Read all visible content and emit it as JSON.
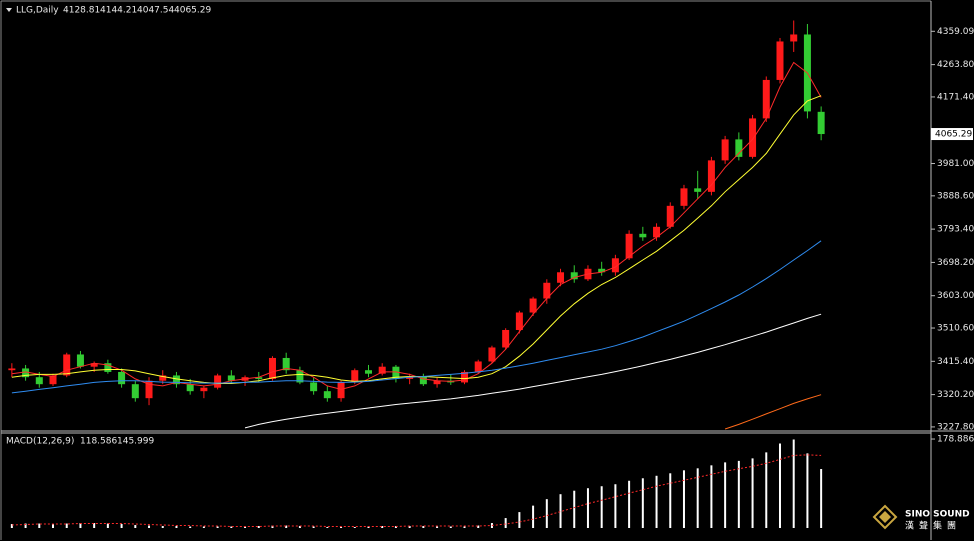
{
  "chart_data": [
    {
      "type": "candlestick",
      "title": "LLG,Daily",
      "categories": [
        null,
        null,
        null,
        null,
        null,
        null,
        null,
        null,
        null,
        null,
        null,
        null,
        null,
        null,
        null,
        null,
        null,
        null,
        null,
        null,
        null,
        null,
        null,
        null,
        null,
        null,
        null,
        null,
        null,
        null,
        null,
        null,
        null,
        null,
        null,
        null,
        null,
        null,
        null,
        null,
        null,
        null,
        null,
        null,
        null,
        null,
        null,
        null,
        null,
        null,
        null,
        null,
        null,
        null,
        null,
        null,
        null,
        null,
        null,
        null
      ],
      "open": [
        3390,
        3395,
        3370,
        3350,
        3375,
        3435,
        3400,
        3410,
        3385,
        3350,
        3310,
        3360,
        3375,
        3350,
        3330,
        3340,
        3375,
        3360,
        3370,
        3365,
        3425,
        3390,
        3355,
        3330,
        3310,
        3355,
        3390,
        3380,
        3400,
        3365,
        3372,
        3350,
        3360,
        3355,
        3385,
        3415,
        3455,
        3505,
        3555,
        3595,
        3640,
        3670,
        3650,
        3680,
        3670,
        3710,
        3780,
        3770,
        3800,
        3860,
        3910,
        3900,
        3990,
        4050,
        4000,
        4110,
        4220,
        4330,
        4350,
        4128.81
      ],
      "high": [
        3410,
        3405,
        3385,
        3380,
        3440,
        3445,
        3415,
        3420,
        3395,
        3360,
        3370,
        3390,
        3385,
        3365,
        3345,
        3380,
        3390,
        3375,
        3385,
        3430,
        3440,
        3400,
        3370,
        3345,
        3360,
        3395,
        3405,
        3410,
        3405,
        3380,
        3380,
        3368,
        3378,
        3390,
        3420,
        3460,
        3510,
        3560,
        3600,
        3650,
        3680,
        3690,
        3690,
        3700,
        3720,
        3790,
        3800,
        3810,
        3870,
        3920,
        3960,
        4000,
        4060,
        4070,
        4120,
        4230,
        4340,
        4390,
        4380,
        4144.21
      ],
      "low": [
        3370,
        3360,
        3340,
        3345,
        3370,
        3395,
        3385,
        3380,
        3340,
        3300,
        3290,
        3350,
        3340,
        3320,
        3310,
        3335,
        3355,
        3345,
        3355,
        3360,
        3380,
        3350,
        3320,
        3300,
        3300,
        3350,
        3370,
        3375,
        3355,
        3350,
        3345,
        3340,
        3348,
        3350,
        3380,
        3410,
        3450,
        3495,
        3545,
        3580,
        3630,
        3640,
        3645,
        3660,
        3660,
        3705,
        3760,
        3760,
        3795,
        3850,
        3880,
        3890,
        3980,
        3990,
        3995,
        4100,
        4210,
        4300,
        4110,
        4047.54
      ],
      "close": [
        3395,
        3370,
        3350,
        3375,
        3435,
        3400,
        3410,
        3385,
        3350,
        3310,
        3360,
        3375,
        3350,
        3330,
        3340,
        3375,
        3360,
        3370,
        3365,
        3425,
        3390,
        3355,
        3330,
        3310,
        3355,
        3390,
        3380,
        3400,
        3365,
        3372,
        3350,
        3360,
        3355,
        3385,
        3415,
        3455,
        3505,
        3555,
        3595,
        3640,
        3670,
        3650,
        3680,
        3670,
        3710,
        3780,
        3770,
        3800,
        3860,
        3910,
        3900,
        3990,
        4050,
        4000,
        4110,
        4220,
        4330,
        4350,
        4130,
        4065.29
      ],
      "up_color": "#ff1a1a",
      "down_color": "#33cc33",
      "lines": [
        {
          "color": "#ff2a2a",
          "values": [
            3380,
            3385,
            3378,
            3372,
            3390,
            3400,
            3410,
            3405,
            3390,
            3365,
            3350,
            3345,
            3355,
            3350,
            3345,
            3350,
            3360,
            3365,
            3370,
            3385,
            3395,
            3390,
            3370,
            3345,
            3335,
            3345,
            3365,
            3385,
            3385,
            3378,
            3365,
            3360,
            3358,
            3362,
            3380,
            3410,
            3450,
            3500,
            3550,
            3595,
            3635,
            3655,
            3665,
            3670,
            3685,
            3715,
            3745,
            3770,
            3800,
            3840,
            3880,
            3920,
            3970,
            4010,
            4050,
            4110,
            4200,
            4270,
            4240,
            4170
          ]
        },
        {
          "color": "#ffff33",
          "values": [
            3370,
            3375,
            3378,
            3378,
            3380,
            3385,
            3390,
            3392,
            3392,
            3388,
            3380,
            3372,
            3365,
            3360,
            3355,
            3352,
            3352,
            3355,
            3360,
            3368,
            3375,
            3378,
            3375,
            3370,
            3362,
            3358,
            3360,
            3365,
            3370,
            3372,
            3372,
            3370,
            3368,
            3366,
            3370,
            3380,
            3400,
            3430,
            3465,
            3505,
            3545,
            3580,
            3610,
            3635,
            3655,
            3680,
            3705,
            3730,
            3760,
            3790,
            3825,
            3860,
            3900,
            3935,
            3970,
            4010,
            4065,
            4120,
            4160,
            4175
          ]
        },
        {
          "color": "#2f8cf0",
          "values": [
            3325,
            3330,
            3335,
            3340,
            3345,
            3350,
            3355,
            3358,
            3360,
            3360,
            3358,
            3356,
            3355,
            3354,
            3353,
            3353,
            3354,
            3355,
            3356,
            3358,
            3360,
            3360,
            3358,
            3356,
            3355,
            3356,
            3358,
            3362,
            3366,
            3370,
            3372,
            3375,
            3378,
            3381,
            3385,
            3390,
            3396,
            3403,
            3410,
            3418,
            3426,
            3434,
            3442,
            3450,
            3460,
            3472,
            3485,
            3500,
            3515,
            3530,
            3548,
            3566,
            3585,
            3605,
            3628,
            3652,
            3678,
            3705,
            3732,
            3760
          ]
        },
        {
          "color": "#ffffff",
          "values": [
            null,
            null,
            null,
            null,
            null,
            null,
            null,
            null,
            null,
            null,
            null,
            null,
            null,
            null,
            null,
            null,
            null,
            3225,
            3235,
            3243,
            3250,
            3256,
            3262,
            3267,
            3272,
            3277,
            3282,
            3287,
            3292,
            3296,
            3300,
            3304,
            3308,
            3313,
            3318,
            3324,
            3330,
            3336,
            3343,
            3350,
            3357,
            3364,
            3371,
            3378,
            3386,
            3394,
            3403,
            3412,
            3421,
            3431,
            3441,
            3452,
            3463,
            3475,
            3487,
            3499,
            3512,
            3525,
            3538,
            3550
          ]
        },
        {
          "color": "#ff6a1a",
          "values": [
            null,
            null,
            null,
            null,
            null,
            null,
            null,
            null,
            null,
            null,
            null,
            null,
            null,
            null,
            null,
            null,
            null,
            null,
            null,
            null,
            null,
            null,
            null,
            null,
            null,
            null,
            null,
            null,
            null,
            null,
            null,
            null,
            null,
            null,
            null,
            null,
            null,
            null,
            null,
            null,
            null,
            null,
            null,
            null,
            null,
            null,
            null,
            null,
            null,
            null,
            null,
            null,
            3222,
            3235,
            3250,
            3265,
            3280,
            3295,
            3308,
            3320
          ]
        }
      ],
      "ylim": [
        3219,
        4440
      ],
      "yticks": [
        4359.09,
        {
          "value": 4263.8,
          "label": "4263.80"
        },
        {
          "value": 4171.4,
          "label": "4171.40"
        },
        {
          "value": 3981,
          "label": "3981.00"
        },
        {
          "value": 3888.6,
          "label": "3888.60"
        },
        {
          "value": 3793.4,
          "label": "3793.40"
        },
        {
          "value": 3698.2,
          "label": "3698.20"
        },
        {
          "value": 3603,
          "label": "3603.00"
        },
        {
          "value": 3510.6,
          "label": "3510.60"
        },
        {
          "value": 3415.4,
          "label": "3415.40"
        },
        {
          "value": 3320.2,
          "label": "3320.20"
        },
        {
          "value": 3227.8,
          "label": "3227.80"
        }
      ]
    },
    {
      "type": "macd",
      "title": "MACD(12,26,9)",
      "series": [
        {
          "color": "#ffffff",
          "values": [
            8,
            9,
            9,
            8,
            9,
            10,
            10,
            9,
            8,
            6,
            5,
            4,
            4,
            3,
            3,
            3,
            3,
            3,
            4,
            5,
            5,
            4,
            3,
            2,
            2,
            2,
            3,
            4,
            4,
            4,
            4,
            3,
            3,
            3,
            5,
            10,
            20,
            32,
            45,
            58,
            68,
            75,
            80,
            84,
            88,
            95,
            100,
            105,
            110,
            116,
            120,
            126,
            132,
            135,
            140,
            152,
            170,
            178,
            150,
            118.586
          ]
        },
        {
          "color": "#ff2a2a",
          "values": [
            6,
            7,
            8,
            8,
            8,
            9,
            9,
            9,
            9,
            8,
            7,
            6,
            5,
            5,
            4,
            4,
            3,
            3,
            3,
            4,
            4,
            4,
            4,
            3,
            3,
            3,
            3,
            3,
            3,
            4,
            4,
            4,
            4,
            4,
            4,
            5,
            8,
            12,
            18,
            25,
            33,
            41,
            49,
            56,
            63,
            70,
            77,
            84,
            90,
            96,
            102,
            108,
            114,
            119,
            124,
            130,
            138,
            146,
            147,
            145.999
          ]
        }
      ],
      "ylim": [
        -6,
        191
      ],
      "yticks": [
        178.886
      ]
    }
  ],
  "watermark": {
    "brand": "SINO SOUND",
    "sub": "漢聲集團"
  }
}
